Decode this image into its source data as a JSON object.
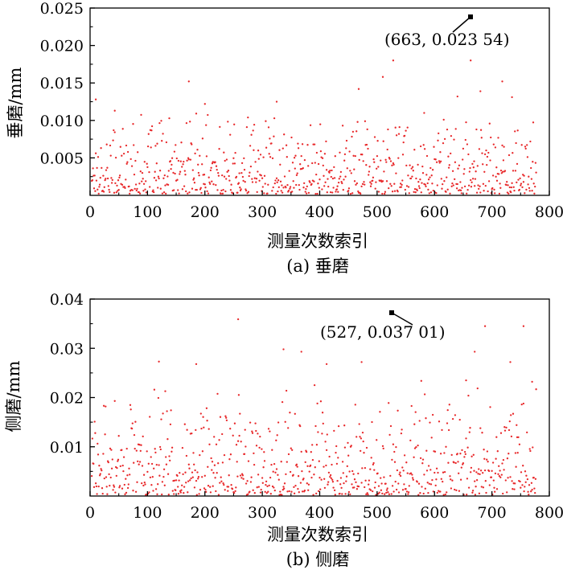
{
  "chart_data": [
    {
      "type": "scatter",
      "caption": "(a) 垂磨",
      "xlabel": "测量次数索引",
      "ylabel": "垂磨/mm",
      "xlim": [
        0,
        800
      ],
      "ylim": [
        0,
        0.025
      ],
      "x_ticks": [
        "0",
        "100",
        "200",
        "300",
        "400",
        "500",
        "600",
        "700",
        "800"
      ],
      "y_ticks": [
        "0.005",
        "0.010",
        "0.015",
        "0.020",
        "0.025"
      ],
      "point_color": "#e8282a",
      "n_points": 775,
      "seed": 17,
      "y_max_typical": 0.012,
      "outliers": [
        [
          10,
          0.0128
        ],
        [
          43,
          0.0113
        ],
        [
          172,
          0.0152
        ],
        [
          200,
          0.0122
        ],
        [
          325,
          0.0125
        ],
        [
          468,
          0.0142
        ],
        [
          510,
          0.0158
        ],
        [
          528,
          0.018
        ],
        [
          582,
          0.011
        ],
        [
          640,
          0.0132
        ],
        [
          663,
          0.018
        ],
        [
          680,
          0.0139
        ],
        [
          718,
          0.0152
        ],
        [
          735,
          0.0131
        ]
      ],
      "max_point": {
        "x": 663,
        "y": 0.02354
      },
      "annotation": "(663, 0.023 54)"
    },
    {
      "type": "scatter",
      "caption": "(b) 侧磨",
      "xlabel": "测量次数索引",
      "ylabel": "侧磨/mm",
      "xlim": [
        0,
        800
      ],
      "ylim": [
        0,
        0.04
      ],
      "x_ticks": [
        "0",
        "100",
        "200",
        "300",
        "400",
        "500",
        "600",
        "700",
        "800"
      ],
      "y_ticks": [
        "0.01",
        "0.02",
        "0.03",
        "0.04"
      ],
      "point_color": "#e8282a",
      "n_points": 775,
      "seed": 29,
      "y_max_typical": 0.024,
      "outliers": [
        [
          120,
          0.0273
        ],
        [
          185,
          0.0268
        ],
        [
          258,
          0.0359
        ],
        [
          337,
          0.0298
        ],
        [
          368,
          0.0293
        ],
        [
          412,
          0.0268
        ],
        [
          473,
          0.0272
        ],
        [
          655,
          0.0235
        ],
        [
          670,
          0.0293
        ],
        [
          688,
          0.0345
        ],
        [
          732,
          0.0272
        ],
        [
          755,
          0.0345
        ],
        [
          770,
          0.0232
        ]
      ],
      "max_point": {
        "x": 527,
        "y": 0.03701
      },
      "annotation": "(527, 0.037 01)"
    }
  ]
}
